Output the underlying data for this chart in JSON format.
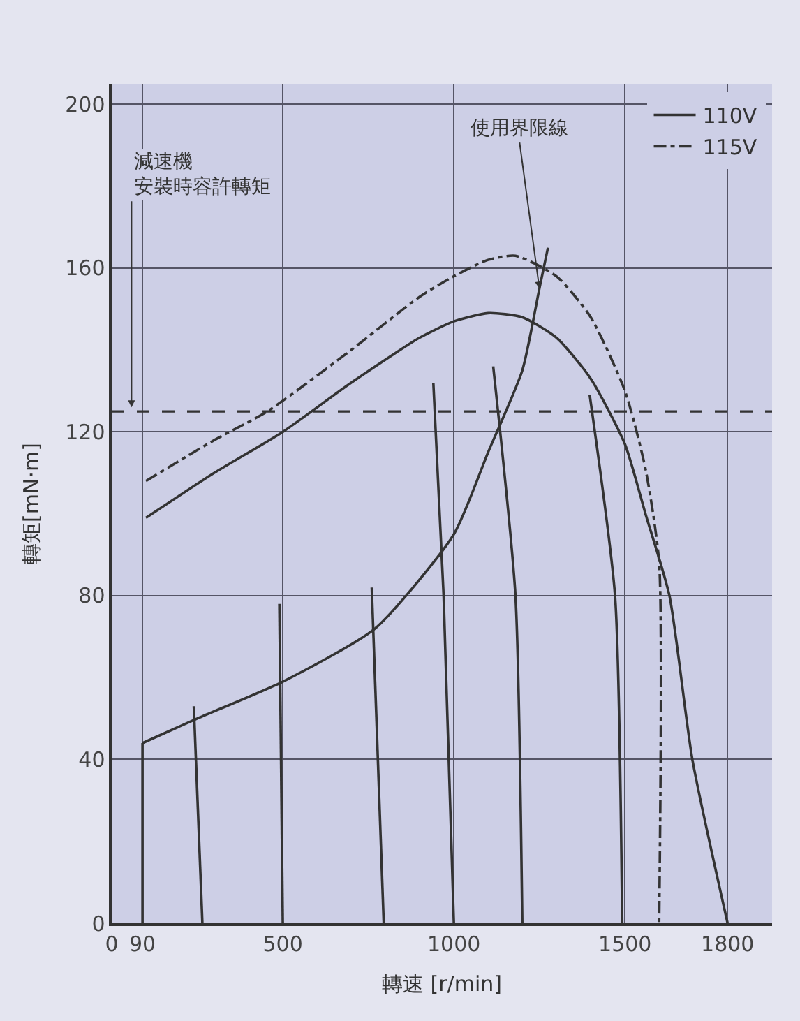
{
  "chart_data": {
    "type": "line",
    "xlabel": "轉速 [r/min]",
    "ylabel": "轉矩[mN·m]",
    "xlim": [
      0,
      1930
    ],
    "xticks": [
      0,
      90,
      500,
      1000,
      1500,
      1800
    ],
    "ylim": [
      0,
      205
    ],
    "yticks": [
      0,
      40,
      80,
      120,
      160,
      200
    ],
    "grid": true,
    "legend": "top right",
    "marker": "none",
    "series": [
      {
        "name": "110V",
        "color": "#333333",
        "line_style": "solid",
        "x": [
          100,
          300,
          500,
          700,
          900,
          1000,
          1100,
          1200,
          1300,
          1400,
          1500,
          1560,
          1630,
          1697,
          1800
        ],
        "values": [
          99,
          110,
          120,
          132,
          143,
          147,
          149,
          148,
          143,
          133,
          117,
          100,
          80,
          40,
          0
        ]
      },
      {
        "name": "115V",
        "color": "#333333",
        "line_style": "dashdot",
        "x": [
          100,
          300,
          455,
          700,
          900,
          1000,
          1100,
          1180,
          1300,
          1400,
          1500,
          1560,
          1600,
          1600
        ],
        "values": [
          108,
          118,
          125,
          140,
          153,
          158,
          162,
          163,
          158,
          148,
          130,
          111,
          88,
          0
        ]
      },
      {
        "color": "#333333",
        "line_style": "solid",
        "x": [
          90,
          250,
          500,
          770,
          1000,
          1100,
          1200,
          1250,
          1275
        ],
        "values": [
          44,
          50,
          59,
          72,
          95,
          115,
          135,
          155,
          165
        ]
      },
      {
        "color": "#333333",
        "line_style": "solid",
        "x": [
          90,
          90
        ],
        "values": [
          44,
          0
        ]
      },
      {
        "color": "#333333",
        "line_style": "solid",
        "x": [
          240,
          265
        ],
        "values": [
          53,
          0
        ]
      },
      {
        "color": "#333333",
        "line_style": "solid",
        "x": [
          490,
          500
        ],
        "values": [
          78,
          0
        ]
      },
      {
        "color": "#333333",
        "line_style": "solid",
        "x": [
          760,
          795
        ],
        "values": [
          82,
          0
        ]
      },
      {
        "color": "#333333",
        "line_style": "solid",
        "x": [
          940,
          970,
          1000
        ],
        "values": [
          132,
          80,
          0
        ]
      },
      {
        "color": "#333333",
        "line_style": "solid",
        "x": [
          1115,
          1180,
          1200
        ],
        "values": [
          136,
          80,
          0
        ]
      },
      {
        "color": "#333333",
        "line_style": "solid",
        "x": [
          1397,
          1471,
          1492
        ],
        "values": [
          129,
          80,
          0
        ]
      }
    ],
    "ref_lines": [
      {
        "axis": "y",
        "value": 125,
        "label": "減速機安裝時容許轉矩",
        "color": "#333333",
        "line_style": "dashed"
      }
    ],
    "annotations": [
      {
        "text": "使用界限線",
        "x": 1250,
        "y": 155
      }
    ]
  }
}
